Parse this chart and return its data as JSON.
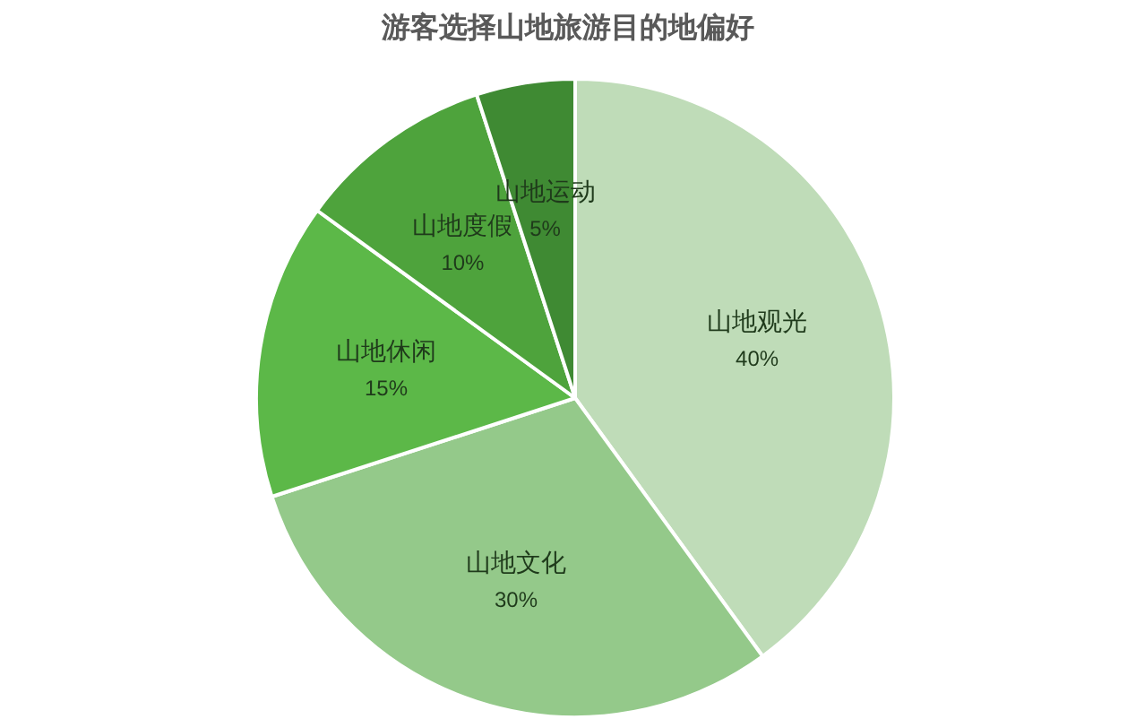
{
  "chart_data": {
    "type": "pie",
    "title": "游客选择山地旅游目的地偏好",
    "categories": [
      "山地观光",
      "山地文化",
      "山地休闲",
      "山地度假",
      "山地运动"
    ],
    "values": [
      40,
      30,
      15,
      10,
      5
    ],
    "colors": [
      "#bfdcb8",
      "#94c98a",
      "#5cb848",
      "#4ea33c",
      "#3f8a33"
    ],
    "value_labels": [
      "40%",
      "30%",
      "15%",
      "10%",
      "5%"
    ]
  }
}
